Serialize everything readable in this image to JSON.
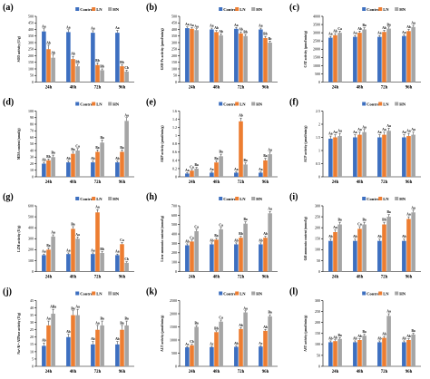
{
  "colors": {
    "control": "#3d6fc0",
    "ln": "#ed7d31",
    "hn": "#a5a5a5",
    "errorbar": "#333333"
  },
  "legend_labels": [
    "Control",
    "LN",
    "HN"
  ],
  "chart_data": [
    {
      "id": "a",
      "letter": "(a)",
      "type": "bar",
      "ylabel": "SOD activity (U/g)",
      "categories": [
        "24h",
        "48h",
        "72h",
        "96h"
      ],
      "ylim": [
        0,
        500
      ],
      "yticks": [
        0,
        50,
        100,
        150,
        200,
        250,
        300,
        350,
        400,
        450,
        500
      ],
      "series": [
        {
          "name": "Control",
          "values": [
            385,
            380,
            375,
            375
          ],
          "errors": [
            20,
            18,
            15,
            18
          ]
        },
        {
          "name": "LN",
          "values": [
            250,
            175,
            130,
            120
          ],
          "errors": [
            30,
            20,
            15,
            12
          ]
        },
        {
          "name": "HN",
          "values": [
            185,
            120,
            90,
            80
          ],
          "errors": [
            20,
            15,
            10,
            10
          ]
        }
      ],
      "labels": [
        [
          "Aa",
          "Ab",
          "Ab"
        ],
        [
          "Aa",
          "Ab",
          "Bb"
        ],
        [
          "Aa",
          "Bb",
          "Bb"
        ],
        [
          "Aa",
          "Bb",
          "Cb"
        ]
      ]
    },
    {
      "id": "b",
      "letter": "(b)",
      "type": "bar",
      "ylabel": "GSH-Px activity (μmol/min/g)",
      "categories": [
        "24h",
        "48h",
        "72h",
        "96h"
      ],
      "ylim": [
        0,
        500
      ],
      "yticks": [
        0,
        50,
        100,
        150,
        200,
        250,
        300,
        350,
        400,
        450,
        500
      ],
      "series": [
        {
          "name": "Control",
          "values": [
            410,
            400,
            405,
            400
          ],
          "errors": [
            10,
            10,
            10,
            10
          ]
        },
        {
          "name": "LN",
          "values": [
            405,
            380,
            370,
            335
          ],
          "errors": [
            10,
            12,
            12,
            12
          ]
        },
        {
          "name": "HN",
          "values": [
            395,
            355,
            350,
            300
          ],
          "errors": [
            10,
            12,
            12,
            12
          ]
        }
      ],
      "labels": [
        [
          "Aa",
          "Aa",
          "Aa"
        ],
        [
          "Aa",
          "Ab",
          "Ab"
        ],
        [
          "Aa",
          "Ab",
          "Bb"
        ],
        [
          "Aa",
          "Bb",
          "Bc"
        ]
      ]
    },
    {
      "id": "c",
      "letter": "(c)",
      "type": "bar",
      "ylabel": "CAT activity (μmol/min/g)",
      "categories": [
        "24h",
        "48h",
        "72h",
        "96h"
      ],
      "ylim": [
        0,
        4000
      ],
      "yticks": [
        0,
        500,
        1000,
        1500,
        2000,
        2500,
        3000,
        3500,
        4000
      ],
      "series": [
        {
          "name": "Control",
          "values": [
            2700,
            2750,
            2750,
            2800
          ],
          "errors": [
            80,
            80,
            80,
            80
          ]
        },
        {
          "name": "LN",
          "values": [
            2850,
            3000,
            3050,
            3100
          ],
          "errors": [
            100,
            100,
            100,
            100
          ]
        },
        {
          "name": "HN",
          "values": [
            3000,
            3200,
            3250,
            3350
          ],
          "errors": [
            100,
            100,
            100,
            100
          ]
        }
      ],
      "labels": [
        [
          "Aa",
          "Ab",
          "Ca"
        ],
        [
          "Aa",
          "Ab",
          "Ba"
        ],
        [
          "Aa",
          "Ab",
          "Ba"
        ],
        [
          "Aa",
          "Ab",
          "Aa"
        ]
      ]
    },
    {
      "id": "d",
      "letter": "(d)",
      "type": "bar",
      "ylabel": "MDA content (nmol/g)",
      "categories": [
        "24h",
        "48h",
        "72h",
        "96h"
      ],
      "ylim": [
        0,
        100
      ],
      "yticks": [
        0,
        10,
        20,
        30,
        40,
        50,
        60,
        70,
        80,
        90,
        100
      ],
      "series": [
        {
          "name": "Control",
          "values": [
            20,
            22,
            22,
            22
          ],
          "errors": [
            2,
            2,
            2,
            2
          ]
        },
        {
          "name": "LN",
          "values": [
            25,
            35,
            38,
            38
          ],
          "errors": [
            2,
            3,
            3,
            3
          ]
        },
        {
          "name": "HN",
          "values": [
            30,
            40,
            52,
            85
          ],
          "errors": [
            3,
            3,
            4,
            5
          ]
        }
      ],
      "labels": [
        [
          "Ab",
          "Bb",
          "Ba"
        ],
        [
          "Ab",
          "Ba",
          "Ca"
        ],
        [
          "Ab",
          "Ba",
          "Ba"
        ],
        [
          "Ab",
          "Ba",
          "Aa"
        ]
      ]
    },
    {
      "id": "e",
      "letter": "(e)",
      "type": "bar",
      "ylabel": "AKP activity (μmol/min/g)",
      "categories": [
        "24h",
        "48h",
        "72h",
        "96h"
      ],
      "ylim": [
        0,
        1.6
      ],
      "yticks": [
        0,
        0.2,
        0.4,
        0.6,
        0.8,
        1,
        1.2,
        1.4,
        1.6
      ],
      "series": [
        {
          "name": "Control",
          "values": [
            0.08,
            0.1,
            0.1,
            0.1
          ],
          "errors": [
            0.02,
            0.02,
            0.02,
            0.02
          ]
        },
        {
          "name": "LN",
          "values": [
            0.15,
            0.35,
            1.35,
            0.4
          ],
          "errors": [
            0.03,
            0.04,
            0.08,
            0.05
          ]
        },
        {
          "name": "HN",
          "values": [
            0.2,
            0.5,
            0.3,
            0.55
          ],
          "errors": [
            0.03,
            0.05,
            0.04,
            0.05
          ]
        }
      ],
      "labels": [
        [
          "Aa",
          "Ca",
          "Ba"
        ],
        [
          "Aa",
          "Ba",
          "Ba"
        ],
        [
          "Aa",
          "Ab",
          "Ba"
        ],
        [
          "Aa",
          "Ba",
          "Aa"
        ]
      ]
    },
    {
      "id": "f",
      "letter": "(f)",
      "type": "bar",
      "ylabel": "ACP activity (μmol/min/g)",
      "categories": [
        "24h",
        "48h",
        "72h",
        "96h"
      ],
      "ylim": [
        0,
        2.5
      ],
      "yticks": [
        0,
        0.5,
        1,
        1.5,
        2,
        2.5
      ],
      "series": [
        {
          "name": "Control",
          "values": [
            1.45,
            1.5,
            1.5,
            1.5
          ],
          "errors": [
            0.1,
            0.1,
            0.1,
            0.1
          ]
        },
        {
          "name": "LN",
          "values": [
            1.5,
            1.6,
            1.6,
            1.55
          ],
          "errors": [
            0.1,
            0.1,
            0.1,
            0.1
          ]
        },
        {
          "name": "HN",
          "values": [
            1.55,
            1.7,
            1.75,
            1.6
          ],
          "errors": [
            0.1,
            0.1,
            0.1,
            0.1
          ]
        }
      ],
      "labels": [
        [
          "Aa",
          "Aa",
          "Aa"
        ],
        [
          "Aa",
          "Aa",
          "Aa"
        ],
        [
          "Aa",
          "Aa",
          "Aa"
        ],
        [
          "Aa",
          "Aa",
          "Aa"
        ]
      ]
    },
    {
      "id": "g",
      "letter": "(g)",
      "type": "bar",
      "ylabel": "LZM activity (U/g)",
      "categories": [
        "24h",
        "48h",
        "72h",
        "96h"
      ],
      "ylim": [
        0,
        600
      ],
      "yticks": [
        0,
        100,
        200,
        300,
        400,
        500,
        600
      ],
      "series": [
        {
          "name": "Control",
          "values": [
            150,
            160,
            160,
            150
          ],
          "errors": [
            10,
            10,
            10,
            10
          ]
        },
        {
          "name": "LN",
          "values": [
            200,
            390,
            540,
            250
          ],
          "errors": [
            15,
            20,
            25,
            15
          ]
        },
        {
          "name": "HN",
          "values": [
            320,
            300,
            170,
            80
          ],
          "errors": [
            15,
            15,
            12,
            10
          ]
        }
      ],
      "labels": [
        [
          "Aa",
          "Ba",
          "Aa"
        ],
        [
          "Aa",
          "Ba",
          "Aa"
        ],
        [
          "Aa",
          "Aa",
          "Bb"
        ],
        [
          "Aa",
          "Ca",
          "Cb"
        ]
      ]
    },
    {
      "id": "h",
      "letter": "(h)",
      "type": "bar",
      "ylabel": "Liver ammonia content (mmol/g)",
      "categories": [
        "24h",
        "48h",
        "72h",
        "96h"
      ],
      "ylim": [
        0,
        700
      ],
      "yticks": [
        0,
        100,
        200,
        300,
        400,
        500,
        600,
        700
      ],
      "series": [
        {
          "name": "Control",
          "values": [
            280,
            290,
            290,
            290
          ],
          "errors": [
            15,
            15,
            15,
            15
          ]
        },
        {
          "name": "LN",
          "values": [
            320,
            340,
            360,
            360
          ],
          "errors": [
            15,
            15,
            15,
            15
          ]
        },
        {
          "name": "HN",
          "values": [
            430,
            450,
            510,
            620
          ],
          "errors": [
            20,
            20,
            20,
            20
          ]
        }
      ],
      "labels": [
        [
          "Ab",
          "Ca",
          "Ca"
        ],
        [
          "Ab",
          "Ba",
          "Ca"
        ],
        [
          "Ab",
          "Bb",
          "Ba"
        ],
        [
          "Ab",
          "Ab",
          "Aa"
        ]
      ]
    },
    {
      "id": "i",
      "letter": "(i)",
      "type": "bar",
      "ylabel": "Gill ammonia content (mmol/g)",
      "categories": [
        "24h",
        "48h",
        "72h",
        "96h"
      ],
      "ylim": [
        0,
        300
      ],
      "yticks": [
        0,
        50,
        100,
        150,
        200,
        250,
        300
      ],
      "series": [
        {
          "name": "Control",
          "values": [
            140,
            140,
            140,
            140
          ],
          "errors": [
            8,
            8,
            8,
            8
          ]
        },
        {
          "name": "LN",
          "values": [
            180,
            195,
            215,
            240
          ],
          "errors": [
            10,
            10,
            10,
            10
          ]
        },
        {
          "name": "HN",
          "values": [
            215,
            215,
            250,
            270
          ],
          "errors": [
            10,
            10,
            10,
            10
          ]
        }
      ],
      "labels": [
        [
          "Ab",
          "Aa",
          "Ba"
        ],
        [
          "Ab",
          "Ca",
          "Ba"
        ],
        [
          "Ab",
          "Bb",
          "Ba"
        ],
        [
          "Ab",
          "Aa",
          "Aa"
        ]
      ]
    },
    {
      "id": "j",
      "letter": "(j)",
      "type": "bar",
      "ylabel": "Na⁺/K⁺-ATPase activity (U/g)",
      "categories": [
        "24h",
        "48h",
        "72h",
        "96h"
      ],
      "ylim": [
        0,
        45
      ],
      "yticks": [
        0,
        5,
        10,
        15,
        20,
        25,
        30,
        35,
        40,
        45
      ],
      "series": [
        {
          "name": "Control",
          "values": [
            14,
            20,
            15,
            15
          ],
          "errors": [
            2,
            2,
            2,
            2
          ]
        },
        {
          "name": "LN",
          "values": [
            28,
            35,
            25,
            25
          ],
          "errors": [
            3,
            3,
            3,
            3
          ]
        },
        {
          "name": "HN",
          "values": [
            36,
            35,
            28,
            28
          ],
          "errors": [
            3,
            4,
            3,
            3
          ]
        }
      ],
      "labels": [
        [
          "Ab",
          "Aa",
          "ABa"
        ],
        [
          "Ab",
          "Ba",
          "Aa"
        ],
        [
          "Ab",
          "Aa",
          "Ba"
        ],
        [
          "Ab",
          "Ba",
          "Ba"
        ]
      ]
    },
    {
      "id": "k",
      "letter": "(k)",
      "type": "bar",
      "ylabel": "ALT activity (μmol/min/g)",
      "categories": [
        "24h",
        "48h",
        "72h",
        "96h"
      ],
      "ylim": [
        0,
        2500
      ],
      "yticks": [
        0,
        500,
        1000,
        1500,
        2000,
        2500
      ],
      "series": [
        {
          "name": "Control",
          "values": [
            720,
            730,
            740,
            750
          ],
          "errors": [
            30,
            30,
            30,
            30
          ]
        },
        {
          "name": "LN",
          "values": [
            800,
            1300,
            1420,
            1350
          ],
          "errors": [
            40,
            50,
            50,
            50
          ]
        },
        {
          "name": "HN",
          "values": [
            1500,
            1700,
            2050,
            1900
          ],
          "errors": [
            50,
            60,
            60,
            60
          ]
        }
      ],
      "labels": [
        [
          "Ac",
          "Cb",
          "Ba"
        ],
        [
          "Ac",
          "Bb",
          "Ca"
        ],
        [
          "Ab",
          "Ab",
          "Aa"
        ],
        [
          "Ac",
          "Ab",
          "Ba"
        ]
      ]
    },
    {
      "id": "l",
      "letter": "(l)",
      "type": "bar",
      "ylabel": "AST activity (μmol/min/g)",
      "categories": [
        "24h",
        "48h",
        "72h",
        "96h"
      ],
      "ylim": [
        0,
        300
      ],
      "yticks": [
        0,
        50,
        100,
        150,
        200,
        250,
        300
      ],
      "series": [
        {
          "name": "Control",
          "values": [
            110,
            110,
            110,
            110
          ],
          "errors": [
            6,
            6,
            6,
            6
          ]
        },
        {
          "name": "LN",
          "values": [
            115,
            120,
            130,
            120
          ],
          "errors": [
            6,
            6,
            6,
            6
          ]
        },
        {
          "name": "HN",
          "values": [
            125,
            140,
            230,
            145
          ],
          "errors": [
            6,
            6,
            10,
            6
          ]
        }
      ],
      "labels": [
        [
          "Ab",
          "Ab",
          "Ba"
        ],
        [
          "Ab",
          "Ab",
          "Ba"
        ],
        [
          "Ab",
          "Ab",
          "Aa"
        ],
        [
          "Ab",
          "Ab",
          "Ba"
        ]
      ]
    }
  ]
}
